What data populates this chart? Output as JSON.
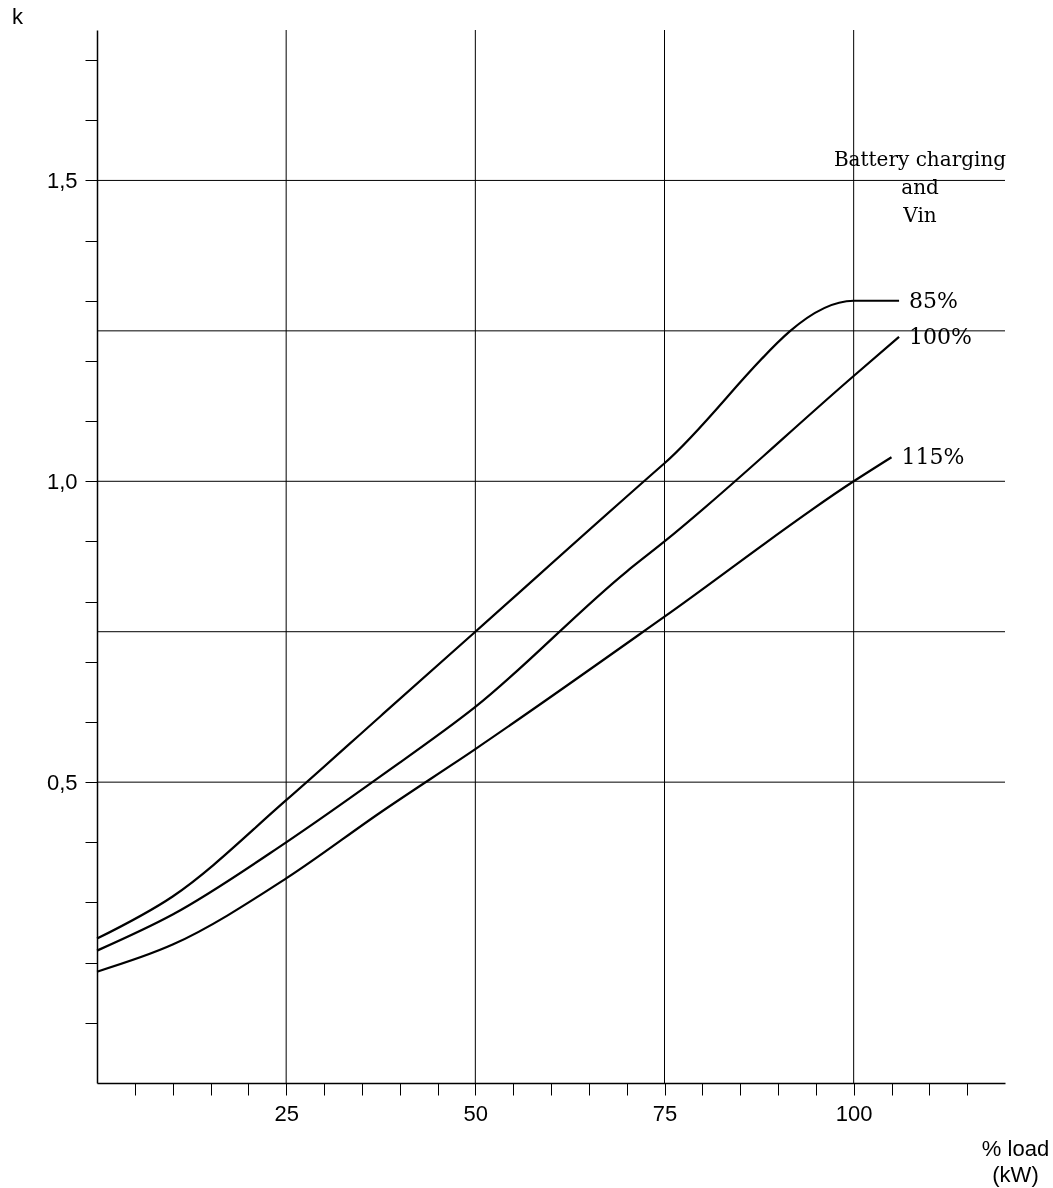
{
  "chart_data": {
    "type": "line",
    "xlabel": "% load\n(kW)",
    "ylabel": "k",
    "legend_title": "Battery charging\nand\nVin",
    "xlim": [
      0,
      120
    ],
    "ylim": [
      0,
      1.75
    ],
    "xticks": [
      {
        "value": 5,
        "label": null
      },
      {
        "value": 10,
        "label": null
      },
      {
        "value": 15,
        "label": null
      },
      {
        "value": 20,
        "label": null
      },
      25,
      {
        "value": 30,
        "label": null
      },
      {
        "value": 35,
        "label": null
      },
      {
        "value": 40,
        "label": null
      },
      {
        "value": 45,
        "label": null
      },
      50,
      {
        "value": 55,
        "label": null
      },
      {
        "value": 60,
        "label": null
      },
      {
        "value": 65,
        "label": null
      },
      {
        "value": 70,
        "label": null
      },
      75,
      {
        "value": 80,
        "label": null
      },
      {
        "value": 85,
        "label": null
      },
      {
        "value": 90,
        "label": null
      },
      {
        "value": 95,
        "label": null
      },
      100,
      {
        "value": 105,
        "label": null
      },
      {
        "value": 110,
        "label": null
      },
      {
        "value": 115,
        "label": null
      }
    ],
    "yticks": [
      {
        "value": 0.1,
        "label": null
      },
      {
        "value": 0.2,
        "label": null
      },
      {
        "value": 0.3,
        "label": null
      },
      {
        "value": 0.4,
        "label": null
      },
      {
        "value": 0.5,
        "label": "0,5"
      },
      {
        "value": 0.6,
        "label": null
      },
      {
        "value": 0.7,
        "label": null
      },
      {
        "value": 0.8,
        "label": null
      },
      {
        "value": 0.9,
        "label": null
      },
      {
        "value": 1.0,
        "label": "1,0"
      },
      {
        "value": 1.1,
        "label": null
      },
      {
        "value": 1.2,
        "label": null
      },
      {
        "value": 1.3,
        "label": null
      },
      {
        "value": 1.4,
        "label": null
      },
      {
        "value": 1.5,
        "label": "1,5"
      },
      {
        "value": 1.6,
        "label": null
      },
      {
        "value": 1.7,
        "label": null
      }
    ],
    "grid": true,
    "legend": "top right",
    "marker": "none",
    "line_style": "solid",
    "ref_lines": [
      {
        "axis": "y",
        "value": 0.75,
        "label": null
      },
      {
        "axis": "y",
        "value": 1.25,
        "label": null
      }
    ],
    "series": [
      {
        "name": "85%",
        "color": "#000000",
        "x": [
          0,
          10,
          25,
          37.5,
          50,
          75,
          100,
          106
        ],
        "values": [
          0.24,
          0.31,
          0.47,
          0.61,
          0.75,
          1.03,
          1.3,
          1.3
        ]
      },
      {
        "name": "100%",
        "color": "#000000",
        "x": [
          0,
          10,
          25,
          37.5,
          50,
          70,
          75,
          100,
          106
        ],
        "values": [
          0.22,
          0.28,
          0.4,
          0.51,
          0.625,
          0.85,
          0.9,
          1.175,
          1.24
        ]
      },
      {
        "name": "115%",
        "color": "#000000",
        "x": [
          0,
          10,
          25,
          37.5,
          50,
          75,
          100,
          105
        ],
        "values": [
          0.185,
          0.23,
          0.34,
          0.45,
          0.555,
          0.775,
          1.0,
          1.04
        ]
      }
    ]
  }
}
